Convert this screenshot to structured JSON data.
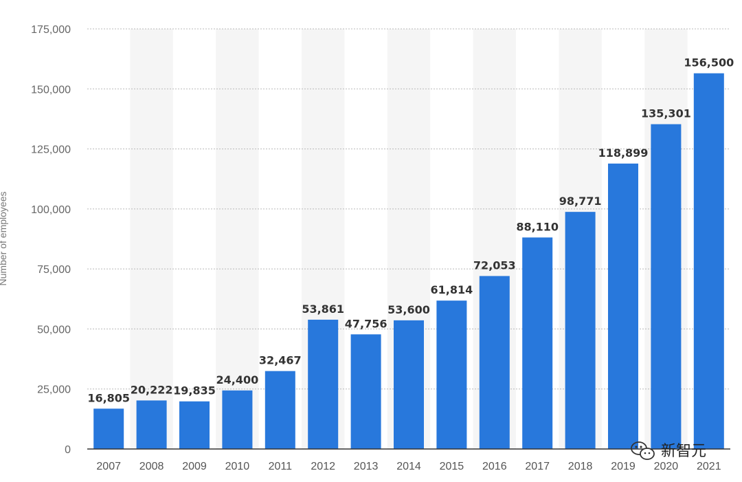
{
  "chart_data": {
    "type": "bar",
    "categories": [
      "2007",
      "2008",
      "2009",
      "2010",
      "2011",
      "2012",
      "2013",
      "2014",
      "2015",
      "2016",
      "2017",
      "2018",
      "2019",
      "2020",
      "2021"
    ],
    "values": [
      16805,
      20222,
      19835,
      24400,
      32467,
      53861,
      47756,
      53600,
      61814,
      72053,
      88110,
      98771,
      118899,
      135301,
      156500
    ],
    "value_labels": [
      "16,805",
      "20,222",
      "19,835",
      "24,400",
      "32,467",
      "53,861",
      "47,756",
      "53,600",
      "61,814",
      "72,053",
      "88,110",
      "98,771",
      "118,899",
      "135,301",
      "156,500"
    ],
    "ylabel": "Number of employees",
    "ylim": [
      0,
      175000
    ],
    "yticks": [
      0,
      25000,
      50000,
      75000,
      100000,
      125000,
      150000,
      175000
    ],
    "ytick_labels": [
      "0",
      "25,000",
      "50,000",
      "75,000",
      "100,000",
      "125,000",
      "150,000",
      "175,000"
    ],
    "grid": true,
    "bar_color": "#2878dc",
    "alt_band_color": "#f5f5f5"
  },
  "watermark": {
    "icon": "wechat-icon",
    "text": "新智元"
  }
}
